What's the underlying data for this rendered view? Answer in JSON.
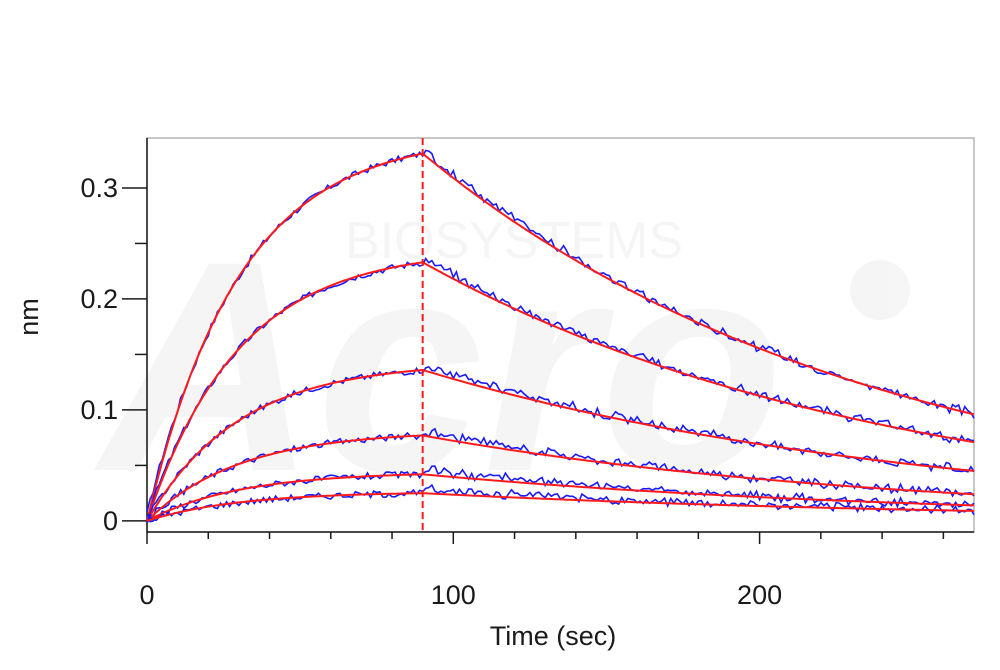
{
  "chart_data": {
    "type": "line",
    "xlabel": "Time (sec)",
    "ylabel": "nm",
    "xlim": [
      0,
      270
    ],
    "ylim": [
      -0.01,
      0.345
    ],
    "x_ticks": [
      0,
      100,
      200
    ],
    "x_tick_labels": [
      "0",
      "100",
      "200"
    ],
    "y_ticks": [
      0,
      0.1,
      0.2,
      0.3
    ],
    "y_tick_labels": [
      "0",
      "0.1",
      "0.2",
      "0.3"
    ],
    "grid": false,
    "association_end_x": 90,
    "series_colors": {
      "measured": "#1a1aff",
      "fit": "#ff1a1a",
      "marker": "#ff1a1a"
    },
    "watermark": {
      "brand": "Acro",
      "sub": "BIOSYSTEMS"
    },
    "series": [
      {
        "kind": "binding_curve",
        "peak": 0.331,
        "end": 0.096,
        "start_offset": 0.006
      },
      {
        "kind": "binding_curve",
        "peak": 0.233,
        "end": 0.071,
        "start_offset": 0.003
      },
      {
        "kind": "binding_curve",
        "peak": 0.136,
        "end": 0.045,
        "start_offset": 0.002
      },
      {
        "kind": "binding_curve",
        "peak": 0.077,
        "end": 0.024,
        "start_offset": 0.001
      },
      {
        "kind": "binding_curve",
        "peak": 0.042,
        "end": 0.014,
        "start_offset": 0.0
      },
      {
        "kind": "binding_curve",
        "peak": 0.025,
        "end": 0.009,
        "start_offset": 0.0
      }
    ]
  }
}
